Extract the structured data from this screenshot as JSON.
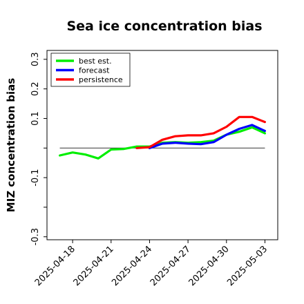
{
  "chart_data": {
    "type": "line",
    "title": "Sea ice concentration bias",
    "xlabel": "",
    "ylabel": "MIZ concentration bias",
    "xlim": [
      "2025-04-16",
      "2025-05-04"
    ],
    "ylim": [
      -0.31,
      0.33
    ],
    "yticks": [
      -0.3,
      -0.1,
      0.1,
      0.2,
      0.3
    ],
    "yminor_ticks": [
      -0.2,
      0.0
    ],
    "xticks": [
      "2025-04-18",
      "2025-04-21",
      "2025-04-24",
      "2025-04-27",
      "2025-04-30",
      "2025-05-03"
    ],
    "highlighted_xtick": "2025-04-24",
    "highlight_color": "#228B22",
    "reference_line": 0.0,
    "grid": false,
    "legend_position": "upper-left",
    "series": [
      {
        "name": "best est.",
        "color": "#00ee00",
        "x": [
          "2025-04-17",
          "2025-04-18",
          "2025-04-19",
          "2025-04-20",
          "2025-04-21",
          "2025-04-22",
          "2025-04-23",
          "2025-04-24",
          "2025-04-25",
          "2025-04-26",
          "2025-04-27",
          "2025-04-28",
          "2025-04-29",
          "2025-04-30",
          "2025-05-01",
          "2025-05-02",
          "2025-05-03"
        ],
        "values": [
          -0.025,
          -0.015,
          -0.022,
          -0.035,
          -0.005,
          -0.003,
          0.005,
          0.005,
          0.018,
          0.02,
          0.018,
          0.02,
          0.025,
          0.045,
          0.055,
          0.07,
          0.05
        ]
      },
      {
        "name": "forecast",
        "color": "#0000ff",
        "x": [
          "2025-04-24",
          "2025-04-25",
          "2025-04-26",
          "2025-04-27",
          "2025-04-28",
          "2025-04-29",
          "2025-04-30",
          "2025-05-01",
          "2025-05-02",
          "2025-05-03"
        ],
        "values": [
          0.0,
          0.015,
          0.018,
          0.015,
          0.013,
          0.02,
          0.045,
          0.065,
          0.078,
          0.058
        ]
      },
      {
        "name": "persistence",
        "color": "#ff0000",
        "x": [
          "2025-04-23",
          "2025-04-24",
          "2025-04-25",
          "2025-04-26",
          "2025-04-27",
          "2025-04-28",
          "2025-04-29",
          "2025-04-30",
          "2025-05-01",
          "2025-05-02",
          "2025-05-03"
        ],
        "values": [
          0.0,
          0.003,
          0.028,
          0.04,
          0.043,
          0.043,
          0.05,
          0.072,
          0.105,
          0.105,
          0.088
        ]
      }
    ]
  }
}
